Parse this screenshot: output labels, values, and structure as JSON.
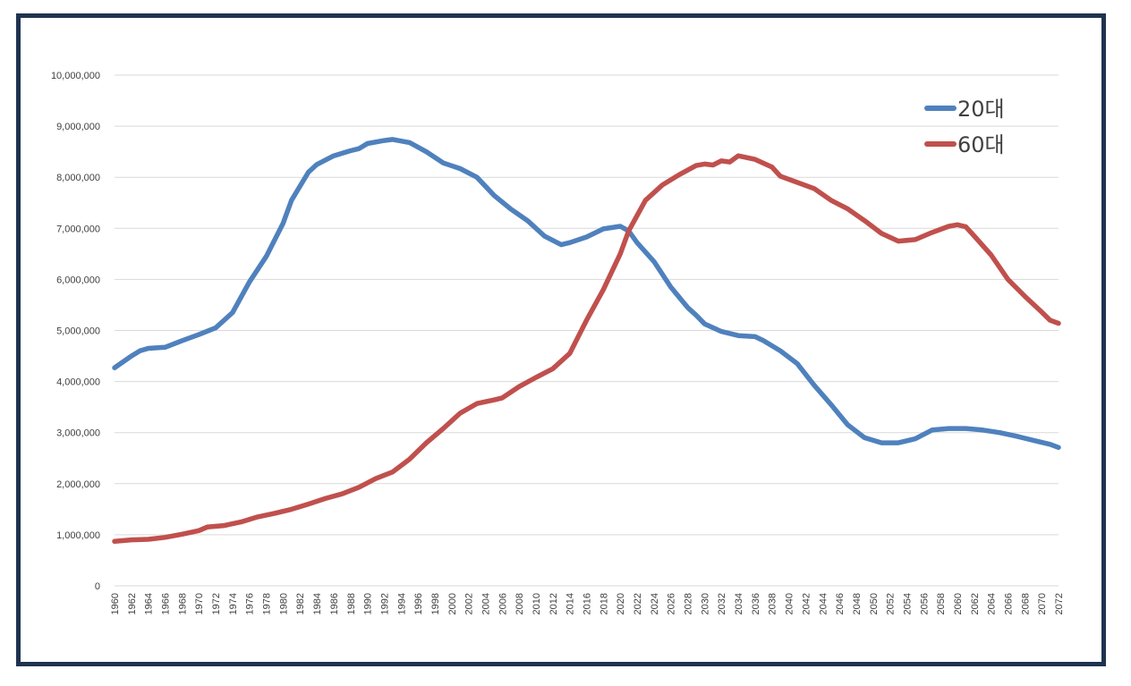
{
  "chart_data": {
    "type": "line",
    "title": "",
    "xlabel": "",
    "ylabel": "",
    "ylim": [
      0,
      10000000
    ],
    "yticks": [
      0,
      1000000,
      2000000,
      3000000,
      4000000,
      5000000,
      6000000,
      7000000,
      8000000,
      9000000,
      10000000
    ],
    "ytick_labels": [
      "0",
      "1,000,000",
      "2,000,000",
      "3,000,000",
      "4,000,000",
      "5,000,000",
      "6,000,000",
      "7,000,000",
      "8,000,000",
      "9,000,000",
      "10,000,000"
    ],
    "xlim": [
      1960,
      2072
    ],
    "xtick_step": 2,
    "grid": true,
    "legend_position": "top-right",
    "series": [
      {
        "name": "20대",
        "color": "#4f81bd",
        "points": [
          [
            1960,
            4270000
          ],
          [
            1962,
            4500000
          ],
          [
            1963,
            4600000
          ],
          [
            1964,
            4650000
          ],
          [
            1966,
            4670000
          ],
          [
            1968,
            4800000
          ],
          [
            1970,
            4920000
          ],
          [
            1972,
            5050000
          ],
          [
            1974,
            5350000
          ],
          [
            1976,
            5950000
          ],
          [
            1978,
            6450000
          ],
          [
            1980,
            7100000
          ],
          [
            1981,
            7550000
          ],
          [
            1983,
            8100000
          ],
          [
            1984,
            8250000
          ],
          [
            1986,
            8420000
          ],
          [
            1988,
            8520000
          ],
          [
            1989,
            8560000
          ],
          [
            1990,
            8660000
          ],
          [
            1992,
            8720000
          ],
          [
            1993,
            8740000
          ],
          [
            1995,
            8680000
          ],
          [
            1997,
            8500000
          ],
          [
            1999,
            8280000
          ],
          [
            2001,
            8170000
          ],
          [
            2003,
            8000000
          ],
          [
            2005,
            7650000
          ],
          [
            2007,
            7380000
          ],
          [
            2009,
            7150000
          ],
          [
            2011,
            6850000
          ],
          [
            2013,
            6680000
          ],
          [
            2014,
            6720000
          ],
          [
            2016,
            6830000
          ],
          [
            2018,
            6990000
          ],
          [
            2020,
            7040000
          ],
          [
            2021,
            6950000
          ],
          [
            2022,
            6720000
          ],
          [
            2024,
            6350000
          ],
          [
            2026,
            5850000
          ],
          [
            2028,
            5450000
          ],
          [
            2029,
            5300000
          ],
          [
            2030,
            5130000
          ],
          [
            2032,
            4980000
          ],
          [
            2034,
            4900000
          ],
          [
            2036,
            4880000
          ],
          [
            2037,
            4800000
          ],
          [
            2039,
            4600000
          ],
          [
            2041,
            4350000
          ],
          [
            2043,
            3930000
          ],
          [
            2045,
            3550000
          ],
          [
            2047,
            3150000
          ],
          [
            2049,
            2900000
          ],
          [
            2051,
            2800000
          ],
          [
            2053,
            2800000
          ],
          [
            2055,
            2880000
          ],
          [
            2057,
            3050000
          ],
          [
            2059,
            3080000
          ],
          [
            2061,
            3080000
          ],
          [
            2063,
            3050000
          ],
          [
            2065,
            3000000
          ],
          [
            2067,
            2930000
          ],
          [
            2069,
            2850000
          ],
          [
            2071,
            2770000
          ],
          [
            2072,
            2710000
          ]
        ]
      },
      {
        "name": "60대",
        "color": "#c0504d",
        "points": [
          [
            1960,
            870000
          ],
          [
            1962,
            900000
          ],
          [
            1964,
            910000
          ],
          [
            1966,
            950000
          ],
          [
            1968,
            1010000
          ],
          [
            1970,
            1080000
          ],
          [
            1971,
            1150000
          ],
          [
            1973,
            1180000
          ],
          [
            1975,
            1250000
          ],
          [
            1977,
            1350000
          ],
          [
            1979,
            1420000
          ],
          [
            1981,
            1500000
          ],
          [
            1983,
            1600000
          ],
          [
            1985,
            1710000
          ],
          [
            1987,
            1800000
          ],
          [
            1989,
            1930000
          ],
          [
            1991,
            2100000
          ],
          [
            1993,
            2230000
          ],
          [
            1995,
            2480000
          ],
          [
            1997,
            2800000
          ],
          [
            1999,
            3080000
          ],
          [
            2001,
            3380000
          ],
          [
            2003,
            3570000
          ],
          [
            2005,
            3640000
          ],
          [
            2006,
            3680000
          ],
          [
            2008,
            3900000
          ],
          [
            2010,
            4080000
          ],
          [
            2012,
            4250000
          ],
          [
            2014,
            4550000
          ],
          [
            2016,
            5200000
          ],
          [
            2018,
            5800000
          ],
          [
            2020,
            6500000
          ],
          [
            2021,
            6950000
          ],
          [
            2022,
            7250000
          ],
          [
            2023,
            7550000
          ],
          [
            2025,
            7850000
          ],
          [
            2027,
            8050000
          ],
          [
            2029,
            8230000
          ],
          [
            2030,
            8260000
          ],
          [
            2031,
            8240000
          ],
          [
            2032,
            8320000
          ],
          [
            2033,
            8300000
          ],
          [
            2034,
            8420000
          ],
          [
            2036,
            8350000
          ],
          [
            2038,
            8200000
          ],
          [
            2039,
            8020000
          ],
          [
            2041,
            7900000
          ],
          [
            2043,
            7780000
          ],
          [
            2045,
            7550000
          ],
          [
            2047,
            7380000
          ],
          [
            2049,
            7150000
          ],
          [
            2051,
            6900000
          ],
          [
            2053,
            6750000
          ],
          [
            2055,
            6780000
          ],
          [
            2057,
            6920000
          ],
          [
            2059,
            7040000
          ],
          [
            2060,
            7070000
          ],
          [
            2061,
            7030000
          ],
          [
            2062,
            6850000
          ],
          [
            2064,
            6480000
          ],
          [
            2066,
            6000000
          ],
          [
            2068,
            5670000
          ],
          [
            2070,
            5360000
          ],
          [
            2071,
            5200000
          ],
          [
            2072,
            5140000
          ]
        ]
      }
    ]
  }
}
